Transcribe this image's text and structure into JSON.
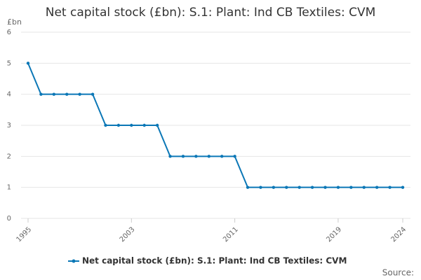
{
  "chart_data": {
    "type": "line",
    "title": "Net capital stock (£bn): S.1: Plant: Ind CB Textiles: CVM",
    "y_label": "£bn",
    "source": "Source:",
    "x": [
      1995,
      1996,
      1997,
      1998,
      1999,
      2000,
      2001,
      2002,
      2003,
      2004,
      2005,
      2006,
      2007,
      2008,
      2009,
      2010,
      2011,
      2012,
      2013,
      2014,
      2015,
      2016,
      2017,
      2018,
      2019,
      2020,
      2021,
      2022,
      2023,
      2024
    ],
    "series": [
      {
        "name": "Net capital stock (£bn): S.1: Plant: Ind CB Textiles: CVM",
        "color": "#0b77b6",
        "values": [
          5,
          4,
          4,
          4,
          4,
          4,
          3,
          3,
          3,
          3,
          3,
          2,
          2,
          2,
          2,
          2,
          2,
          1,
          1,
          1,
          1,
          1,
          1,
          1,
          1,
          1,
          1,
          1,
          1,
          1
        ]
      }
    ],
    "xlim": [
      1995,
      2024
    ],
    "xticks": [
      1995,
      2003,
      2011,
      2019,
      2024
    ],
    "ylim": [
      0,
      6
    ],
    "yticks": [
      0,
      1,
      2,
      3,
      4,
      5,
      6
    ],
    "grid": true,
    "legend": "bottom"
  }
}
